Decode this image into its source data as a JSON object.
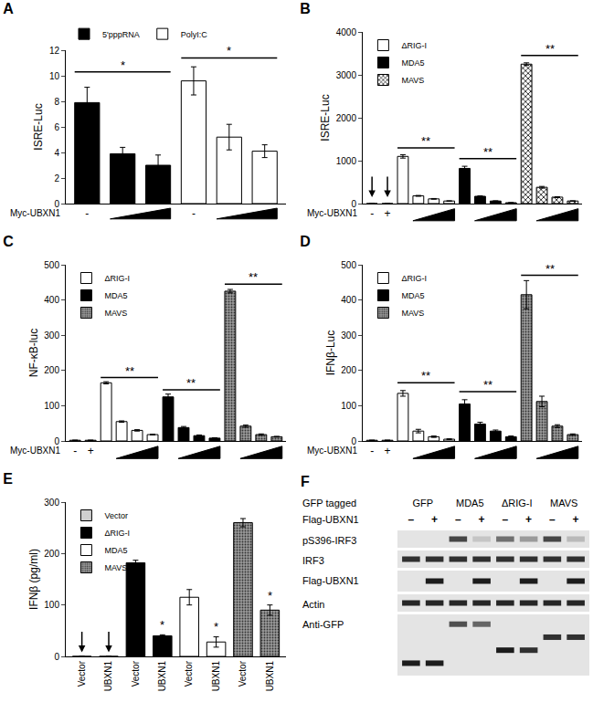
{
  "chart_data": [
    {
      "title": "A",
      "type": "bar",
      "ylabel": "ISRE-Luc",
      "xlabel": "Myc-UBXN1",
      "categories": [
        "-",
        null,
        null,
        "-",
        null,
        null
      ],
      "series": [
        {
          "name": "5'pppRNA",
          "color": "#000000",
          "values": [
            7.9,
            3.9,
            3.0,
            null,
            null,
            null
          ],
          "errors": [
            1.2,
            0.5,
            0.8,
            null,
            null,
            null
          ]
        },
        {
          "name": "PolyI:C",
          "color": "#ffffff",
          "values": [
            null,
            null,
            null,
            9.6,
            5.2,
            4.1
          ],
          "errors": [
            null,
            null,
            null,
            1.1,
            1.0,
            0.5
          ]
        }
      ],
      "ylim": [
        0,
        12
      ],
      "yticks": [
        0,
        2,
        4,
        6,
        8,
        10,
        12
      ],
      "legend": "above",
      "annotations": [
        {
          "text": "*",
          "marker": "line",
          "from": 0,
          "to": 2,
          "y": 10.3
        },
        {
          "text": "*",
          "marker": "line",
          "from": 3,
          "to": 5,
          "y": 11.4
        },
        {
          "marker": "ramp",
          "from": 1,
          "to": 2
        },
        {
          "marker": "ramp",
          "from": 4,
          "to": 5
        }
      ]
    },
    {
      "title": "B",
      "type": "bar",
      "ylabel": "ISRE-Luc",
      "xlabel": "Myc-UBXN1",
      "categories": [
        "-",
        "+",
        null,
        null,
        null,
        null,
        null,
        null,
        null,
        null,
        null,
        null,
        null,
        null
      ],
      "series": [
        {
          "name": "ΔRIG-I",
          "color": "#ffffff",
          "values": [
            0,
            0,
            1100,
            180,
            110,
            60,
            null,
            null,
            null,
            null,
            null,
            null,
            null,
            null
          ],
          "errors": [
            null,
            null,
            40,
            10,
            8,
            5,
            null,
            null,
            null,
            null,
            null,
            null,
            null,
            null
          ]
        },
        {
          "name": "MDA5",
          "color": "#000000",
          "values": [
            null,
            null,
            null,
            null,
            null,
            null,
            820,
            170,
            60,
            20,
            null,
            null,
            null,
            null
          ],
          "errors": [
            null,
            null,
            null,
            null,
            null,
            null,
            50,
            10,
            5,
            3,
            null,
            null,
            null,
            null
          ]
        },
        {
          "name": "MAVS",
          "color": "#ffffff",
          "marker": "checkered",
          "values": [
            null,
            null,
            null,
            null,
            null,
            null,
            null,
            null,
            null,
            null,
            3250,
            380,
            150,
            60
          ],
          "errors": [
            null,
            null,
            null,
            null,
            null,
            null,
            null,
            null,
            null,
            null,
            30,
            20,
            10,
            5
          ]
        }
      ],
      "ylim": [
        0,
        4000
      ],
      "yticks": [
        0,
        1000,
        2000,
        3000,
        4000
      ],
      "legend": "top left",
      "annotations": [
        {
          "marker": "arrow",
          "x": 0,
          "y": 150
        },
        {
          "marker": "arrow",
          "x": 1,
          "y": 150
        },
        {
          "text": "**",
          "marker": "line",
          "from": 2,
          "to": 5,
          "y": 1300
        },
        {
          "text": "**",
          "marker": "line",
          "from": 6,
          "to": 9,
          "y": 1050
        },
        {
          "text": "**",
          "marker": "line",
          "from": 10,
          "to": 13,
          "y": 3450
        },
        {
          "marker": "ramp",
          "from": 3,
          "to": 5
        },
        {
          "marker": "ramp",
          "from": 7,
          "to": 9
        },
        {
          "marker": "ramp",
          "from": 11,
          "to": 13
        }
      ]
    },
    {
      "title": "C",
      "type": "bar",
      "ylabel": "NF-κB-luc",
      "xlabel": "Myc-UBXN1",
      "categories": [
        "-",
        "+",
        null,
        null,
        null,
        null,
        null,
        null,
        null,
        null,
        null,
        null,
        null,
        null
      ],
      "series": [
        {
          "name": "ΔRIG-I",
          "color": "#ffffff",
          "values": [
            2,
            2,
            165,
            55,
            30,
            18,
            null,
            null,
            null,
            null,
            null,
            null,
            null,
            null
          ],
          "errors": [
            null,
            null,
            3,
            2,
            2,
            1,
            null,
            null,
            null,
            null,
            null,
            null,
            null,
            null
          ]
        },
        {
          "name": "MDA5",
          "color": "#000000",
          "values": [
            null,
            null,
            null,
            null,
            null,
            null,
            125,
            38,
            15,
            8,
            null,
            null,
            null,
            null
          ],
          "errors": [
            null,
            null,
            null,
            null,
            null,
            null,
            8,
            3,
            2,
            1,
            null,
            null,
            null,
            null
          ]
        },
        {
          "name": "MAVS",
          "color": "#9a9a9a",
          "marker": "dotted",
          "values": [
            null,
            null,
            null,
            null,
            null,
            null,
            null,
            null,
            null,
            null,
            425,
            42,
            18,
            12
          ],
          "errors": [
            null,
            null,
            null,
            null,
            null,
            null,
            null,
            null,
            null,
            null,
            5,
            3,
            2,
            1
          ]
        }
      ],
      "ylim": [
        0,
        500
      ],
      "yticks": [
        0,
        100,
        200,
        300,
        400,
        500
      ],
      "legend": "top left",
      "annotations": [
        {
          "text": "**",
          "marker": "line",
          "from": 2,
          "to": 5,
          "y": 180
        },
        {
          "text": "**",
          "marker": "line",
          "from": 6,
          "to": 9,
          "y": 145
        },
        {
          "text": "**",
          "marker": "line",
          "from": 10,
          "to": 13,
          "y": 445
        },
        {
          "marker": "ramp",
          "from": 3,
          "to": 5
        },
        {
          "marker": "ramp",
          "from": 7,
          "to": 9
        },
        {
          "marker": "ramp",
          "from": 11,
          "to": 13
        }
      ]
    },
    {
      "title": "D",
      "type": "bar",
      "ylabel": "IFNβ-Luc",
      "xlabel": "Myc-UBXN1",
      "categories": [
        "-",
        "+",
        null,
        null,
        null,
        null,
        null,
        null,
        null,
        null,
        null,
        null,
        null,
        null
      ],
      "series": [
        {
          "name": "ΔRIG-I",
          "color": "#ffffff",
          "values": [
            2,
            2,
            135,
            28,
            12,
            5,
            null,
            null,
            null,
            null,
            null,
            null,
            null,
            null
          ],
          "errors": [
            null,
            null,
            8,
            5,
            2,
            1,
            null,
            null,
            null,
            null,
            null,
            null,
            null,
            null
          ]
        },
        {
          "name": "MDA5",
          "color": "#000000",
          "values": [
            null,
            null,
            null,
            null,
            null,
            null,
            105,
            48,
            28,
            12,
            null,
            null,
            null,
            null
          ],
          "errors": [
            null,
            null,
            null,
            null,
            null,
            null,
            12,
            5,
            3,
            2,
            null,
            null,
            null,
            null
          ]
        },
        {
          "name": "MAVS",
          "color": "#9a9a9a",
          "marker": "dotted",
          "values": [
            null,
            null,
            null,
            null,
            null,
            null,
            null,
            null,
            null,
            null,
            415,
            112,
            42,
            18
          ],
          "errors": [
            null,
            null,
            null,
            null,
            null,
            null,
            null,
            null,
            null,
            null,
            40,
            15,
            4,
            2
          ]
        }
      ],
      "ylim": [
        0,
        500
      ],
      "yticks": [
        0,
        100,
        200,
        300,
        400,
        500
      ],
      "legend": "top left",
      "annotations": [
        {
          "text": "**",
          "marker": "line",
          "from": 2,
          "to": 5,
          "y": 165
        },
        {
          "text": "**",
          "marker": "line",
          "from": 6,
          "to": 9,
          "y": 140
        },
        {
          "text": "**",
          "marker": "line",
          "from": 10,
          "to": 13,
          "y": 470
        },
        {
          "marker": "ramp",
          "from": 3,
          "to": 5
        },
        {
          "marker": "ramp",
          "from": 7,
          "to": 9
        },
        {
          "marker": "ramp",
          "from": 11,
          "to": 13
        }
      ]
    },
    {
      "title": "E",
      "type": "bar",
      "ylabel": "IFNβ (pg/ml)",
      "categories": [
        "Vector",
        "UBXN1",
        "Vector",
        "UBXN1",
        "Vector",
        "UBXN1",
        "Vector",
        "UBXN1"
      ],
      "series": [
        {
          "name": "Vector",
          "color": "#d0d0d0",
          "values": [
            0,
            0,
            null,
            null,
            null,
            null,
            null,
            null
          ],
          "errors": [
            null,
            null,
            null,
            null,
            null,
            null,
            null,
            null
          ]
        },
        {
          "name": "ΔRIG-I",
          "color": "#000000",
          "values": [
            null,
            null,
            182,
            40,
            null,
            null,
            null,
            null
          ],
          "errors": [
            null,
            null,
            5,
            2,
            null,
            null,
            null,
            null
          ]
        },
        {
          "name": "MDA5",
          "color": "#ffffff",
          "values": [
            null,
            null,
            null,
            null,
            115,
            28,
            null,
            null
          ],
          "errors": [
            null,
            null,
            null,
            null,
            15,
            10,
            null,
            null
          ]
        },
        {
          "name": "MAVS",
          "color": "#9a9a9a",
          "marker": "dotted",
          "values": [
            null,
            null,
            null,
            null,
            null,
            null,
            260,
            90
          ],
          "errors": [
            null,
            null,
            null,
            null,
            null,
            null,
            8,
            10
          ]
        }
      ],
      "ylim": [
        0,
        300
      ],
      "yticks": [
        0,
        100,
        200,
        300
      ],
      "legend": "top left",
      "annotations": [
        {
          "marker": "arrow",
          "x": 0,
          "y": 8
        },
        {
          "marker": "arrow",
          "x": 1,
          "y": 8
        },
        {
          "text": "*",
          "x": 3,
          "y": 44
        },
        {
          "text": "*",
          "x": 5,
          "y": 40
        },
        {
          "text": "*",
          "x": 7,
          "y": 102
        }
      ]
    }
  ],
  "blot": {
    "title": "F",
    "header": "GFP tagged",
    "treatment": "Flag-UBXN1",
    "groups": [
      "GFP",
      "MDA5",
      "ΔRIG-I",
      "MAVS"
    ],
    "lanes": [
      "–",
      "+",
      "–",
      "+",
      "–",
      "+",
      "–",
      "+"
    ],
    "rows": [
      {
        "label": "pS396-IRF3",
        "bands": [
          0,
          0,
          0.75,
          0.15,
          0.55,
          0.35,
          0.75,
          0.2
        ]
      },
      {
        "label": "IRF3",
        "bands": [
          0.85,
          0.85,
          0.85,
          0.85,
          0.85,
          0.85,
          0.85,
          0.85
        ]
      },
      {
        "label": "Flag-UBXN1",
        "bands": [
          0,
          0.95,
          0,
          0.95,
          0,
          0.95,
          0,
          0.95
        ]
      },
      {
        "label": "Actin",
        "bands": [
          0.9,
          0.9,
          0.9,
          0.9,
          0.9,
          0.9,
          0.9,
          0.9
        ]
      },
      {
        "label": "Anti-GFP",
        "bands": [
          0.95,
          0.95,
          0.7,
          0.6,
          0.95,
          0.85,
          0.85,
          0.85
        ],
        "band_positions": [
          0.85,
          0.85,
          0.1,
          0.1,
          0.6,
          0.6,
          0.35,
          0.35
        ]
      }
    ]
  }
}
